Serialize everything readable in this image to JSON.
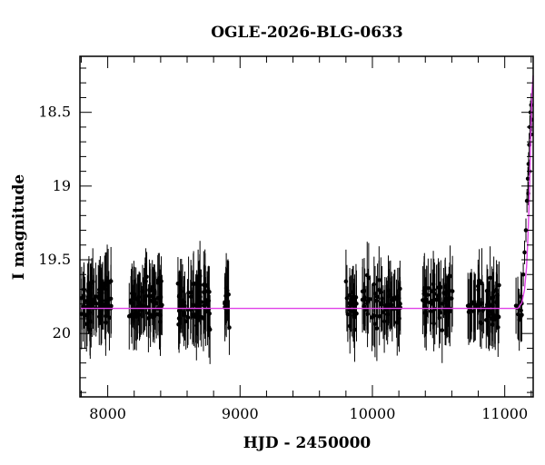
{
  "chart_data": {
    "type": "scatter",
    "title": "OGLE-2026-BLG-0633",
    "xlabel": "HJD - 2450000",
    "ylabel": "I magnitude",
    "xlim": [
      7790,
      11215
    ],
    "ylim": [
      20.43,
      18.12
    ],
    "y_inverted": true,
    "x_ticks": [
      8000,
      9000,
      10000,
      11000
    ],
    "y_ticks": [
      18.5,
      19,
      19.5,
      20
    ],
    "x_tick_labels": [
      "8000",
      "9000",
      "10000",
      "11000"
    ],
    "y_tick_labels": [
      "18.5",
      "19",
      "19.5",
      "20"
    ],
    "grid": false,
    "colors": {
      "points": "#000000",
      "errorbars": "#000000",
      "model": "#e040e8",
      "frame": "#000000"
    },
    "seasons": [
      {
        "x_range": [
          7800,
          8030
        ],
        "mean_mag": 19.78,
        "scatter": 0.13,
        "err": 0.2,
        "n": 70
      },
      {
        "x_range": [
          8160,
          8420
        ],
        "mean_mag": 19.79,
        "scatter": 0.13,
        "err": 0.2,
        "n": 70
      },
      {
        "x_range": [
          8530,
          8780
        ],
        "mean_mag": 19.8,
        "scatter": 0.14,
        "err": 0.21,
        "n": 75
      },
      {
        "x_range": [
          8880,
          8920
        ],
        "mean_mag": 19.78,
        "scatter": 0.15,
        "err": 0.2,
        "n": 12
      },
      {
        "x_range": [
          9800,
          9880
        ],
        "mean_mag": 19.8,
        "scatter": 0.12,
        "err": 0.2,
        "n": 25
      },
      {
        "x_range": [
          9920,
          10220
        ],
        "mean_mag": 19.8,
        "scatter": 0.13,
        "err": 0.2,
        "n": 60
      },
      {
        "x_range": [
          10380,
          10610
        ],
        "mean_mag": 19.79,
        "scatter": 0.13,
        "err": 0.2,
        "n": 55
      },
      {
        "x_range": [
          10720,
          10960
        ],
        "mean_mag": 19.79,
        "scatter": 0.13,
        "err": 0.2,
        "n": 55
      },
      {
        "x_range": [
          11080,
          11130
        ],
        "mean_mag": 19.82,
        "scatter": 0.1,
        "err": 0.18,
        "n": 10
      }
    ],
    "rise_points": [
      {
        "x": 11140,
        "y": 19.6
      },
      {
        "x": 11150,
        "y": 19.45
      },
      {
        "x": 11160,
        "y": 19.3
      },
      {
        "x": 11168,
        "y": 19.1
      },
      {
        "x": 11175,
        "y": 18.95
      },
      {
        "x": 11180,
        "y": 18.85
      },
      {
        "x": 11185,
        "y": 18.72
      },
      {
        "x": 11190,
        "y": 18.6
      },
      {
        "x": 11195,
        "y": 18.5
      },
      {
        "x": 11200,
        "y": 18.45
      },
      {
        "x": 11203,
        "y": 18.55
      },
      {
        "x": 11198,
        "y": 18.65
      },
      {
        "x": 11188,
        "y": 18.9
      },
      {
        "x": 11178,
        "y": 19.05
      }
    ],
    "model_curve": [
      [
        7790,
        19.83
      ],
      [
        11100,
        19.83
      ],
      [
        11130,
        19.79
      ],
      [
        11150,
        19.7
      ],
      [
        11165,
        19.55
      ],
      [
        11175,
        19.35
      ],
      [
        11185,
        19.1
      ],
      [
        11192,
        18.85
      ],
      [
        11198,
        18.6
      ],
      [
        11203,
        18.45
      ],
      [
        11207,
        18.35
      ],
      [
        11212,
        18.28
      ],
      [
        11215,
        18.25
      ]
    ]
  }
}
